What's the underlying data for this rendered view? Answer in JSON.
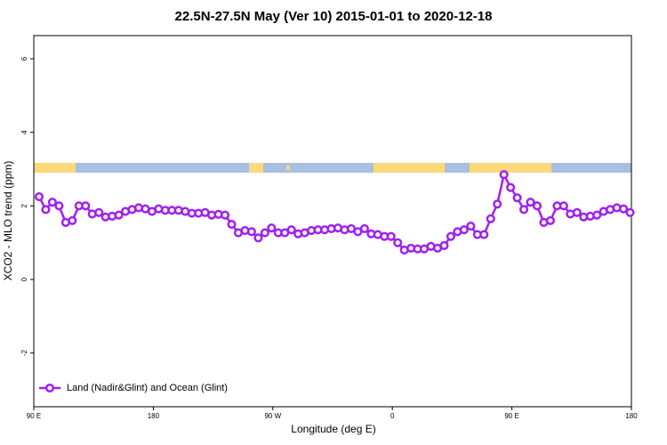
{
  "chart_data": {
    "type": "line",
    "title": "22.5N-27.5N May (Ver 10)   2015-01-01 to 2020-12-18",
    "x_label": "Longitude (deg E)",
    "y_label": "XCO2 - MLO trend (ppm)",
    "xlim": [
      90,
      540
    ],
    "xticks": [
      {
        "value": 90,
        "label": "90 E"
      },
      {
        "value": 180,
        "label": "180"
      },
      {
        "value": 270,
        "label": "90 W"
      },
      {
        "value": 360,
        "label": "0"
      },
      {
        "value": 450,
        "label": "90 E"
      },
      {
        "value": 540,
        "label": "180"
      }
    ],
    "ylim": [
      -3.46,
      6.63
    ],
    "yticks": [
      -2,
      0,
      2,
      4,
      6
    ],
    "legend_position": "bottom-left",
    "x": [
      94,
      99,
      104,
      109,
      114,
      119,
      124,
      129,
      134,
      139,
      144,
      149,
      154,
      159,
      164,
      169,
      174,
      179,
      184,
      189,
      194,
      199,
      204,
      209,
      214,
      219,
      224,
      229,
      234,
      239,
      244,
      249,
      254,
      259,
      264,
      269,
      274,
      279,
      284,
      289,
      294,
      299,
      304,
      309,
      314,
      319,
      324,
      329,
      334,
      339,
      344,
      349,
      354,
      359,
      364,
      369,
      374,
      379,
      384,
      389,
      394,
      399,
      404,
      409,
      414,
      419,
      424,
      429,
      434,
      439,
      444,
      449,
      454,
      459,
      464,
      469,
      474,
      479,
      484,
      489,
      494,
      499,
      504,
      509,
      514,
      519,
      524,
      529,
      534,
      539
    ],
    "series": [
      {
        "name": "Land (Nadir&Glint) and Ocean (Glint)",
        "color": "#a020f0",
        "values": [
          2.25,
          1.9,
          2.1,
          2.0,
          1.55,
          1.6,
          2.0,
          2.0,
          1.78,
          1.82,
          1.7,
          1.72,
          1.75,
          1.85,
          1.9,
          1.95,
          1.92,
          1.85,
          1.92,
          1.88,
          1.88,
          1.88,
          1.85,
          1.8,
          1.8,
          1.82,
          1.75,
          1.77,
          1.75,
          1.5,
          1.27,
          1.33,
          1.3,
          1.13,
          1.27,
          1.4,
          1.27,
          1.27,
          1.35,
          1.24,
          1.27,
          1.33,
          1.35,
          1.35,
          1.38,
          1.4,
          1.35,
          1.38,
          1.3,
          1.38,
          1.24,
          1.22,
          1.17,
          1.17,
          1.0,
          0.8,
          0.85,
          0.83,
          0.83,
          0.9,
          0.85,
          0.92,
          1.17,
          1.3,
          1.35,
          1.45,
          1.22,
          1.22,
          1.65,
          2.05,
          2.85,
          2.5,
          2.22,
          1.9,
          2.1,
          2.0,
          1.55,
          1.6,
          2.0,
          2.0,
          1.78,
          1.82,
          1.7,
          1.72,
          1.75,
          1.85,
          1.9,
          1.95,
          1.92,
          1.82
        ]
      }
    ]
  }
}
